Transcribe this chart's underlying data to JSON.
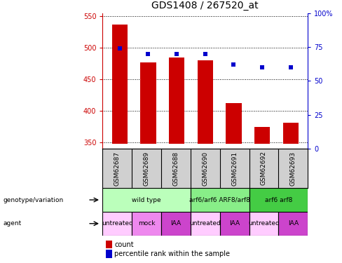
{
  "title": "GDS1408 / 267520_at",
  "samples": [
    "GSM62687",
    "GSM62689",
    "GSM62688",
    "GSM62690",
    "GSM62691",
    "GSM62692",
    "GSM62693"
  ],
  "counts": [
    537,
    477,
    485,
    480,
    412,
    374,
    381
  ],
  "percentile_ranks": [
    74,
    70,
    70,
    70,
    62,
    60,
    60
  ],
  "ylim_left": [
    340,
    555
  ],
  "ylim_right": [
    0,
    100
  ],
  "yticks_left": [
    350,
    400,
    450,
    500,
    550
  ],
  "yticks_right": [
    0,
    25,
    50,
    75,
    100
  ],
  "bar_color": "#cc0000",
  "dot_color": "#0000cc",
  "bar_bottom": 348,
  "genotype_groups": [
    {
      "label": "wild type",
      "span": [
        0,
        3
      ],
      "color": "#bbffbb"
    },
    {
      "label": "arf6/arf6 ARF8/arf8",
      "span": [
        3,
        5
      ],
      "color": "#88ee88"
    },
    {
      "label": "arf6 arf8",
      "span": [
        5,
        7
      ],
      "color": "#44cc44"
    }
  ],
  "agent_groups": [
    {
      "label": "untreated",
      "span": [
        0,
        1
      ],
      "color": "#ffccff"
    },
    {
      "label": "mock",
      "span": [
        1,
        2
      ],
      "color": "#ee88ee"
    },
    {
      "label": "IAA",
      "span": [
        2,
        3
      ],
      "color": "#cc44cc"
    },
    {
      "label": "untreated",
      "span": [
        3,
        4
      ],
      "color": "#ffccff"
    },
    {
      "label": "IAA",
      "span": [
        4,
        5
      ],
      "color": "#cc44cc"
    },
    {
      "label": "untreated",
      "span": [
        5,
        6
      ],
      "color": "#ffccff"
    },
    {
      "label": "IAA",
      "span": [
        6,
        7
      ],
      "color": "#cc44cc"
    }
  ],
  "left_axis_color": "#cc0000",
  "right_axis_color": "#0000cc",
  "background_color": "#ffffff",
  "title_fontsize": 10,
  "tick_fontsize": 7,
  "sample_fontsize": 6.5,
  "cell_label_fontsize": 6.5,
  "legend_items": [
    "count",
    "percentile rank within the sample"
  ],
  "legend_colors": [
    "#cc0000",
    "#0000cc"
  ],
  "sample_bg_color": "#d0d0d0"
}
